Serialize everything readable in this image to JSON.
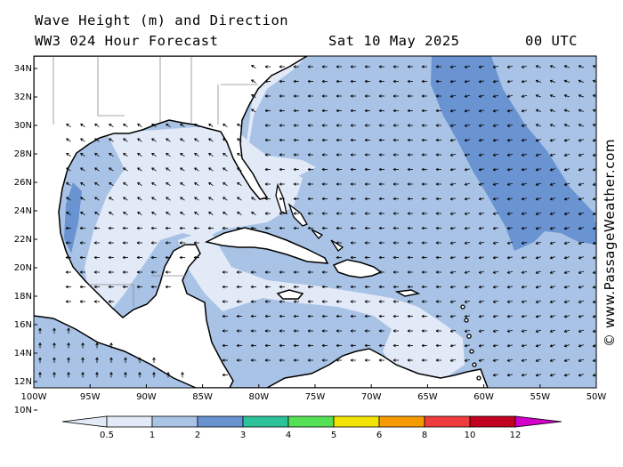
{
  "header": {
    "title": "Wave Height (m) and Direction",
    "model": "WW3 024 Hour Forecast",
    "date": "Sat 10 May 2025",
    "time": "00 UTC"
  },
  "credit": "© www.PassageWeather.com",
  "axes": {
    "lat_labels": [
      "34N",
      "32N",
      "30N",
      "28N",
      "26N",
      "24N",
      "22N",
      "20N",
      "18N",
      "16N",
      "14N",
      "12N",
      "10N"
    ],
    "lon_labels": [
      "100W",
      "95W",
      "90W",
      "85W",
      "80W",
      "75W",
      "70W",
      "65W",
      "60W",
      "55W",
      "50W"
    ]
  },
  "legend": {
    "ticks": [
      "0.5",
      "1",
      "2",
      "3",
      "4",
      "5",
      "6",
      "8",
      "10",
      "12"
    ],
    "colors": [
      "#e2eaf7",
      "#a9c3e6",
      "#6993d1",
      "#2ec29b",
      "#55e055",
      "#f2e300",
      "#f59a00",
      "#ef3d3d",
      "#c2001f",
      "#d200c8"
    ]
  },
  "map_colors": {
    "land": "#ffffff",
    "calm": "#e2eaf7",
    "moderate": "#a9c3e6",
    "high": "#6993d1",
    "arrow": "#000000"
  }
}
